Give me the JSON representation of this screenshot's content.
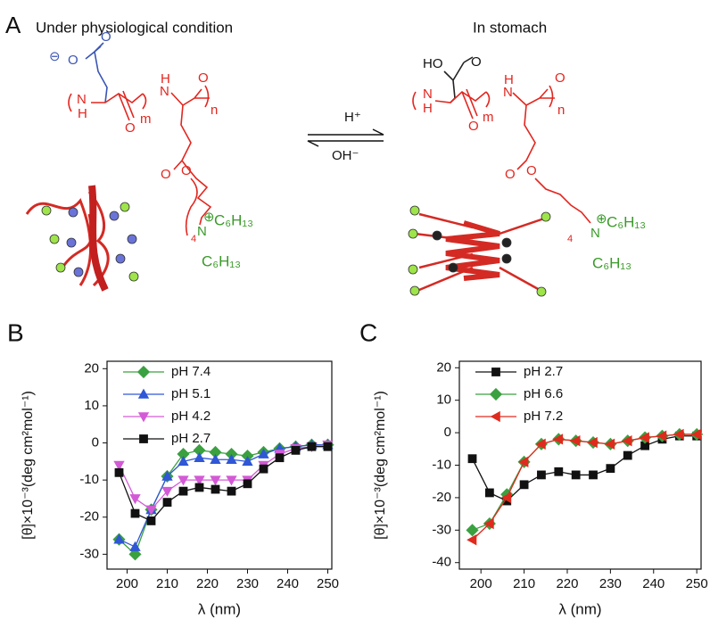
{
  "diagram": {
    "panel_label": "A",
    "left_title": "Under physiological condition",
    "right_title": "In stomach",
    "arrow_top": "H⁺",
    "arrow_bottom": "OH⁻",
    "left_labels": [
      "⊖",
      "O",
      "O",
      "N",
      "H",
      "O",
      "m",
      "N",
      "H",
      "O",
      "n",
      "O",
      "O",
      "4",
      "N",
      "⊕",
      "C₆H₁₃",
      "C₆H₁₃"
    ],
    "right_labels": [
      "HO",
      "O",
      "N",
      "H",
      "O",
      "m",
      "N",
      "H",
      "O",
      "n",
      "O",
      "O",
      "4",
      "N",
      "⊕",
      "C₆H₁₃",
      "C₆H₁₃"
    ]
  },
  "chart_data": [
    {
      "type": "line",
      "panel_label": "B",
      "xlabel": "λ (nm)",
      "ylabel": "[θ]×10⁻³(deg cm²mol⁻¹)",
      "x": [
        198,
        202,
        206,
        210,
        214,
        218,
        222,
        226,
        230,
        234,
        238,
        242,
        246,
        250
      ],
      "series": [
        {
          "name": "pH 7.4",
          "color": "#3aa040",
          "marker": "diamond",
          "values": [
            -26,
            -30,
            -18,
            -9,
            -3,
            -2,
            -2.5,
            -3,
            -3.5,
            -2.5,
            -1.5,
            -1,
            -0.5,
            -0.5
          ]
        },
        {
          "name": "pH 5.1",
          "color": "#2f57d6",
          "marker": "triangle-up",
          "values": [
            -26,
            -28,
            -18,
            -9,
            -5,
            -4,
            -4.5,
            -4.5,
            -5,
            -3,
            -1.5,
            -1,
            -0.5,
            -0.5
          ]
        },
        {
          "name": "pH 4.2",
          "color": "#d35ad6",
          "marker": "triangle-down",
          "values": [
            -6,
            -15,
            -18,
            -13,
            -10,
            -10,
            -10,
            -10,
            -10,
            -6,
            -3,
            -1.5,
            -1,
            -0.5
          ]
        },
        {
          "name": "pH 2.7",
          "color": "#111111",
          "marker": "square",
          "values": [
            -8,
            -19,
            -21,
            -16,
            -13,
            -12,
            -12.5,
            -13,
            -11,
            -7,
            -4,
            -2,
            -1,
            -1
          ]
        }
      ],
      "xlim": [
        195,
        251
      ],
      "ylim": [
        -34,
        22
      ],
      "xticks": [
        200,
        210,
        220,
        230,
        240,
        250
      ],
      "yticks": [
        -30,
        -20,
        -10,
        0,
        10,
        20
      ],
      "legend": "upper left"
    },
    {
      "type": "line",
      "panel_label": "C",
      "xlabel": "λ (nm)",
      "ylabel": "[θ]×10⁻³(deg cm²mol⁻¹)",
      "x": [
        198,
        202,
        206,
        210,
        214,
        218,
        222,
        226,
        230,
        234,
        238,
        242,
        246,
        250
      ],
      "series": [
        {
          "name": "pH 2.7",
          "color": "#111111",
          "marker": "square",
          "values": [
            -8,
            -18.5,
            -21,
            -16,
            -13,
            -12,
            -13,
            -13,
            -11,
            -7,
            -4,
            -2,
            -1,
            -1
          ]
        },
        {
          "name": "pH 6.6",
          "color": "#3aa040",
          "marker": "diamond",
          "values": [
            -30,
            -28,
            -19,
            -9,
            -3.5,
            -2,
            -2.5,
            -3,
            -3.5,
            -2.5,
            -1.5,
            -1,
            -0.5,
            -0.5
          ]
        },
        {
          "name": "pH 7.2",
          "color": "#e02a1e",
          "marker": "triangle-left",
          "values": [
            -33,
            -28,
            -20,
            -9,
            -3.5,
            -2,
            -2.5,
            -3,
            -3.5,
            -2.5,
            -1.5,
            -1,
            -0.5,
            -0.5
          ]
        }
      ],
      "xlim": [
        195,
        251
      ],
      "ylim": [
        -42,
        22
      ],
      "xticks": [
        200,
        210,
        220,
        230,
        240,
        250
      ],
      "yticks": [
        -40,
        -30,
        -20,
        -10,
        0,
        10,
        20
      ],
      "legend": "upper left"
    }
  ]
}
